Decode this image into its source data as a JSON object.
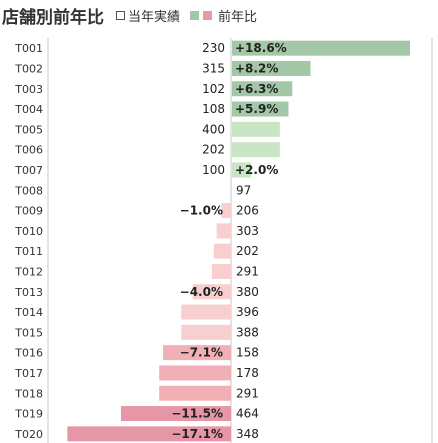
{
  "header": {
    "title": "店舗別前年比",
    "legend_current": "当年実績",
    "legend_yoy": "前年比"
  },
  "colors": {
    "positive_strong": "#a3c8a7",
    "positive_light": "#c9e6c4",
    "negative_light": "#f7cfcf",
    "negative_mid": "#f0b0b6",
    "negative_strong": "#e597a7",
    "gridline": "#c8c8c8",
    "label_text": "#333333"
  },
  "chart_data": {
    "type": "bar",
    "orientation": "horizontal",
    "categories": [
      "T001",
      "T002",
      "T003",
      "T004",
      "T005",
      "T006",
      "T007",
      "T008",
      "T009",
      "T010",
      "T011",
      "T012",
      "T013",
      "T014",
      "T015",
      "T016",
      "T017",
      "T018",
      "T019",
      "T020"
    ],
    "series": [
      {
        "name": "当年実績",
        "values": [
          230,
          315,
          102,
          108,
          400,
          202,
          100,
          97,
          206,
          303,
          202,
          291,
          380,
          396,
          388,
          158,
          178,
          291,
          464,
          348
        ]
      },
      {
        "name": "前年比",
        "values": [
          18.6,
          8.2,
          6.3,
          5.9,
          5.0,
          5.0,
          2.0,
          0.0,
          -1.0,
          -1.5,
          -1.8,
          -2.0,
          -4.0,
          -5.2,
          -5.2,
          -7.1,
          -7.5,
          -7.5,
          -11.5,
          -17.1
        ],
        "labels": [
          "+18.6%",
          "+8.2%",
          "+6.3%",
          "+5.9%",
          "",
          "",
          "+2.0%",
          "",
          "−1.0%",
          "",
          "",
          "",
          "−4.0%",
          "",
          "",
          "−7.1%",
          "",
          "",
          "−11.5%",
          "−17.1%"
        ]
      }
    ],
    "legend": "top"
  }
}
